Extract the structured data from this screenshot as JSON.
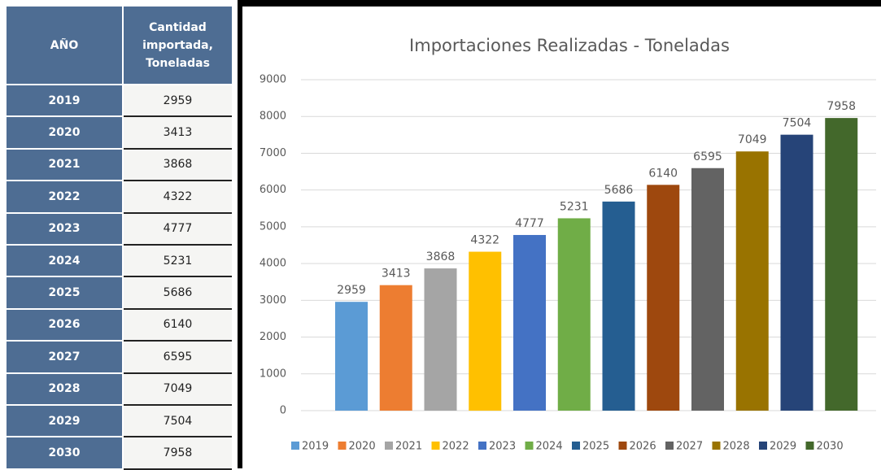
{
  "table": {
    "headers": [
      "AÑO",
      "Cantidad importada, Toneladas"
    ],
    "rows": [
      [
        "2019",
        "2959"
      ],
      [
        "2020",
        "3413"
      ],
      [
        "2021",
        "3868"
      ],
      [
        "2022",
        "4322"
      ],
      [
        "2023",
        "4777"
      ],
      [
        "2024",
        "5231"
      ],
      [
        "2025",
        "5686"
      ],
      [
        "2026",
        "6140"
      ],
      [
        "2027",
        "6595"
      ],
      [
        "2028",
        "7049"
      ],
      [
        "2029",
        "7504"
      ],
      [
        "2030",
        "7958"
      ]
    ]
  },
  "chart_data": {
    "type": "bar",
    "title": "Importaciones Realizadas - Toneladas",
    "categories": [
      null
    ],
    "series": [
      {
        "name": "2019",
        "color": "#5b9bd5",
        "values": [
          2959
        ]
      },
      {
        "name": "2020",
        "color": "#ed7d31",
        "values": [
          3413
        ]
      },
      {
        "name": "2021",
        "color": "#a5a5a5",
        "values": [
          3868
        ]
      },
      {
        "name": "2022",
        "color": "#ffc000",
        "values": [
          4322
        ]
      },
      {
        "name": "2023",
        "color": "#4472c4",
        "values": [
          4777
        ]
      },
      {
        "name": "2024",
        "color": "#70ad47",
        "values": [
          5231
        ]
      },
      {
        "name": "2025",
        "color": "#255e91",
        "values": [
          5686
        ]
      },
      {
        "name": "2026",
        "color": "#9e480e",
        "values": [
          6140
        ]
      },
      {
        "name": "2027",
        "color": "#636363",
        "values": [
          6595
        ]
      },
      {
        "name": "2028",
        "color": "#997300",
        "values": [
          7049
        ]
      },
      {
        "name": "2029",
        "color": "#264478",
        "values": [
          7504
        ]
      },
      {
        "name": "2030",
        "color": "#43682b",
        "values": [
          7958
        ]
      }
    ],
    "ylim": [
      0,
      9000
    ],
    "yticks": [
      0,
      1000,
      2000,
      3000,
      4000,
      5000,
      6000,
      7000,
      8000,
      9000
    ],
    "grid": true,
    "data_labels": true,
    "legend": "bottom"
  }
}
